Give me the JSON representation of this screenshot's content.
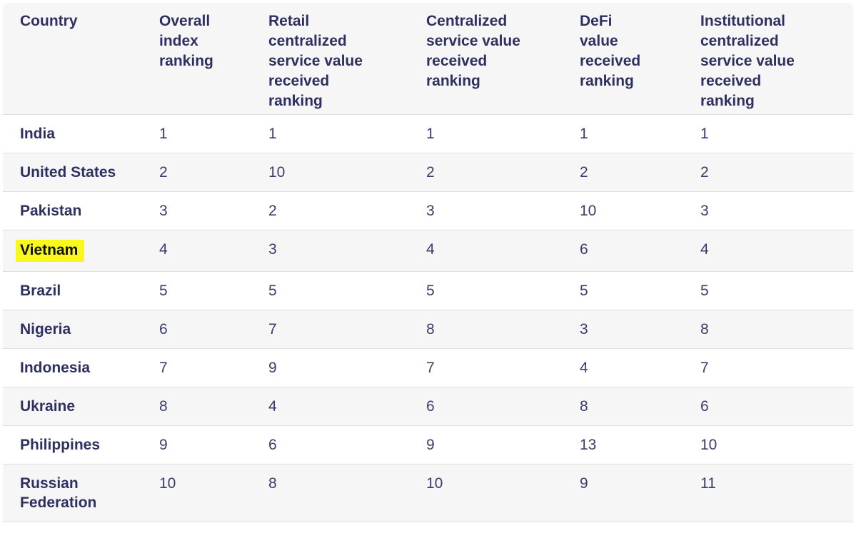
{
  "colors": {
    "header_background": "#f6f6f7",
    "alt_row_background": "#f6f6f7",
    "row_background": "#ffffff",
    "row_border": "#dfdfe3",
    "header_text": "#2e3061",
    "country_text": "#2e3061",
    "number_text": "#3a3c6a",
    "highlight_background": "#f9f81c",
    "highlight_text": "#0f0f0f"
  },
  "chart_data": {
    "type": "table",
    "title": "",
    "columns": [
      {
        "key": "country",
        "label": "Country",
        "display_label": "Country"
      },
      {
        "key": "overall",
        "label": "Overall index ranking",
        "display_label": "Overall\nindex\nranking"
      },
      {
        "key": "retail",
        "label": "Retail centralized service value received ranking",
        "display_label": "Retail\ncentralized\nservice value\nreceived\nranking"
      },
      {
        "key": "centralized",
        "label": "Centralized service value received ranking",
        "display_label": "Centralized\nservice value\nreceived\nranking"
      },
      {
        "key": "defi",
        "label": "DeFi value received ranking",
        "display_label": "DeFi\nvalue\nreceived\nranking"
      },
      {
        "key": "institutional",
        "label": "Institutional centralized service value received ranking",
        "display_label": "Institutional\ncentralized\nservice value\nreceived\nranking"
      }
    ],
    "rows": [
      {
        "country": "India",
        "highlighted": false,
        "values": [
          1,
          1,
          1,
          1,
          1
        ]
      },
      {
        "country": "United States",
        "highlighted": false,
        "values": [
          2,
          10,
          2,
          2,
          2
        ]
      },
      {
        "country": "Pakistan",
        "highlighted": false,
        "values": [
          3,
          2,
          3,
          10,
          3
        ]
      },
      {
        "country": "Vietnam",
        "highlighted": true,
        "values": [
          4,
          3,
          4,
          6,
          4
        ]
      },
      {
        "country": "Brazil",
        "highlighted": false,
        "values": [
          5,
          5,
          5,
          5,
          5
        ]
      },
      {
        "country": "Nigeria",
        "highlighted": false,
        "values": [
          6,
          7,
          8,
          3,
          8
        ]
      },
      {
        "country": "Indonesia",
        "highlighted": false,
        "values": [
          7,
          9,
          7,
          4,
          7
        ]
      },
      {
        "country": "Ukraine",
        "highlighted": false,
        "values": [
          8,
          4,
          6,
          8,
          6
        ]
      },
      {
        "country": "Philippines",
        "highlighted": false,
        "values": [
          9,
          6,
          9,
          13,
          10
        ]
      },
      {
        "country": "Russian Federation",
        "highlighted": false,
        "values": [
          10,
          8,
          10,
          9,
          11
        ]
      }
    ]
  }
}
